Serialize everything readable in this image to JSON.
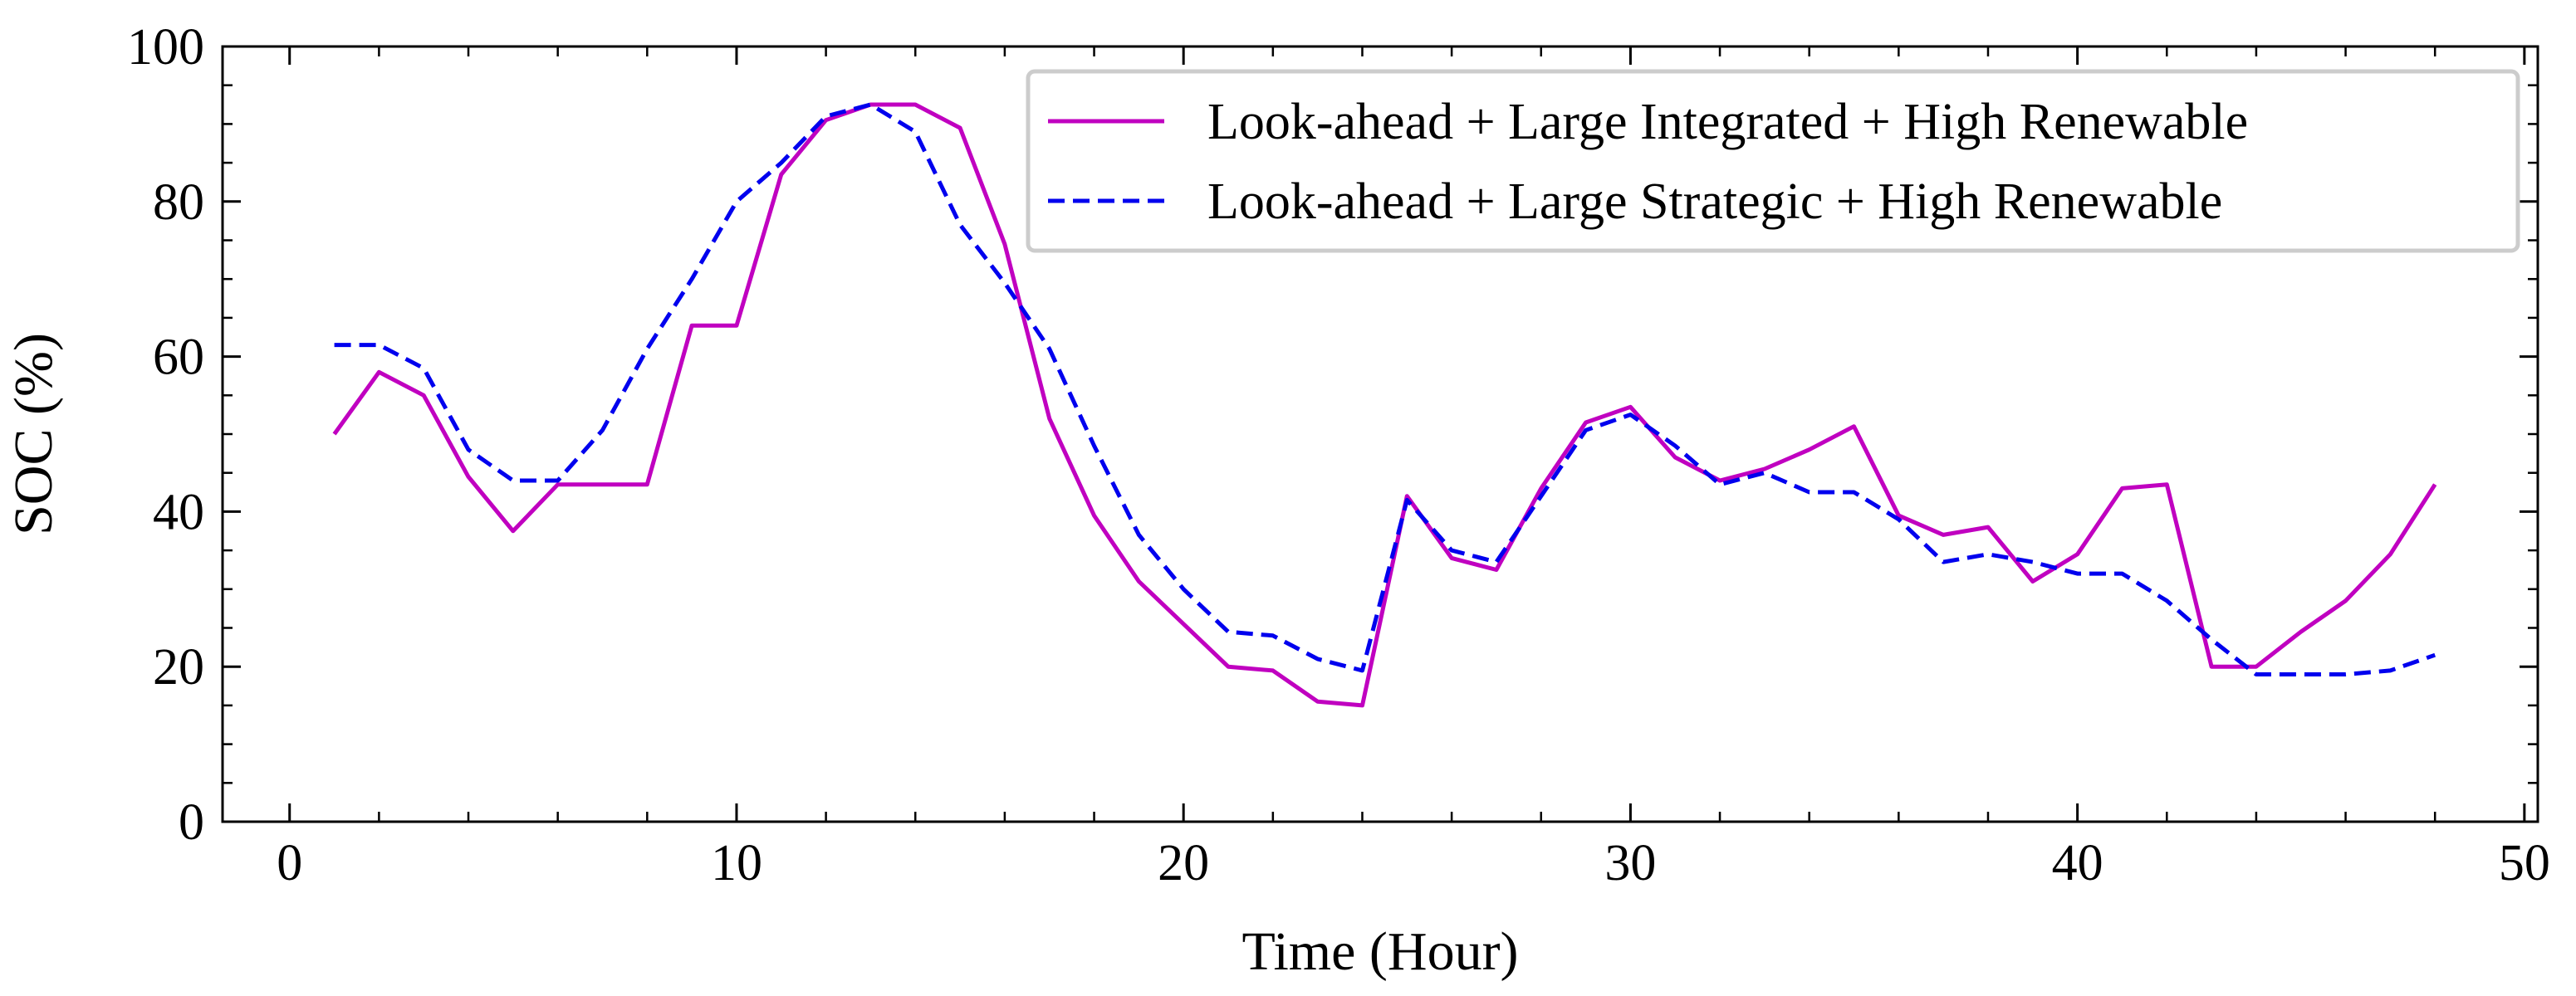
{
  "chart_data": {
    "type": "line",
    "xlabel": "Time (Hour)",
    "ylabel": "SOC (%)",
    "xlim": [
      -1.5,
      50.3
    ],
    "ylim": [
      0,
      100
    ],
    "x_ticks": [
      0,
      10,
      20,
      30,
      40,
      50
    ],
    "y_ticks": [
      0,
      20,
      40,
      60,
      80,
      100
    ],
    "x_minor_step": 2,
    "y_minor_step": 5,
    "grid": false,
    "legend_position": "top-right",
    "x": [
      1,
      2,
      3,
      4,
      5,
      6,
      7,
      8,
      9,
      10,
      11,
      12,
      13,
      14,
      15,
      16,
      17,
      18,
      19,
      20,
      21,
      22,
      23,
      24,
      25,
      26,
      27,
      28,
      29,
      30,
      31,
      32,
      33,
      34,
      35,
      36,
      37,
      38,
      39,
      40,
      41,
      42,
      43,
      44,
      45,
      46,
      47,
      48
    ],
    "series": [
      {
        "name": "Look-ahead + Large Integrated + High Renewable",
        "color": "#c000c0",
        "style": "solid",
        "values": [
          50,
          58,
          55,
          44.5,
          37.5,
          43.5,
          43.5,
          43.5,
          64,
          64,
          83.5,
          90.5,
          92.5,
          92.5,
          89.5,
          74.5,
          52,
          39.5,
          31,
          25.5,
          20,
          19.5,
          15.5,
          15,
          42,
          34,
          32.5,
          43,
          51.5,
          53.5,
          47,
          44,
          45.5,
          48,
          51,
          39.5,
          37,
          38,
          31,
          34.5,
          43,
          43.5,
          20,
          20,
          24.5,
          28.5,
          34.5,
          43.5
        ]
      },
      {
        "name": "Look-ahead + Large Strategic + High Renewable",
        "color": "#0000ee",
        "style": "dashed",
        "values": [
          61.5,
          61.5,
          58.5,
          48,
          44,
          44,
          50.5,
          61,
          70,
          80,
          85,
          91,
          92.5,
          89,
          77,
          69.5,
          61,
          48.5,
          37,
          30,
          24.5,
          24,
          21,
          19.5,
          41.5,
          35,
          33.5,
          42,
          50.5,
          52.5,
          48.5,
          43.5,
          45,
          42.5,
          42.5,
          39,
          33.5,
          34.5,
          33.5,
          32,
          32,
          28.5,
          23.5,
          19,
          19,
          19,
          19.5,
          21.5
        ]
      }
    ]
  }
}
